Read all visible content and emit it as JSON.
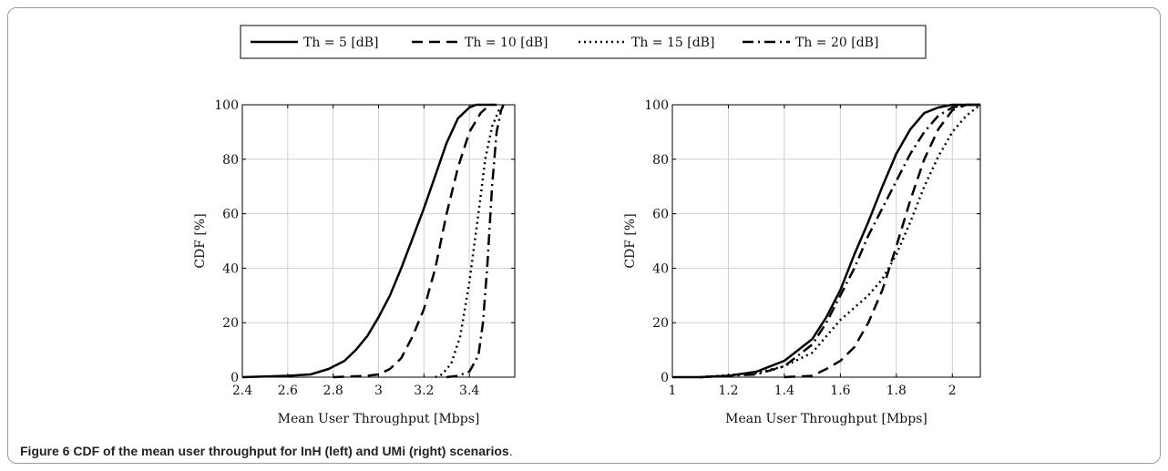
{
  "caption": {
    "label": "Figure 6",
    "text": "CDF of the mean user throughput for InH (left) and UMi (right) scenarios",
    "end": "."
  },
  "legend": {
    "entries": [
      {
        "label": "Th = 5 [dB]",
        "style": "solid"
      },
      {
        "label": "Th = 10 [dB]",
        "style": "dashed"
      },
      {
        "label": "Th = 15 [dB]",
        "style": "dotted"
      },
      {
        "label": "Th = 20 [dB]",
        "style": "dashdot"
      }
    ]
  },
  "chart_data": [
    {
      "type": "line",
      "title": "",
      "xlabel": "Mean User Throughput [Mbps]",
      "ylabel": "CDF [%]",
      "xlim": [
        2.4,
        3.6
      ],
      "ylim": [
        0,
        100
      ],
      "xticks": [
        2.4,
        2.6,
        2.8,
        3,
        3.2,
        3.4
      ],
      "xtick_labels": [
        "2.4",
        "2.6",
        "2.8",
        "3",
        "3.2",
        "3.4"
      ],
      "yticks": [
        0,
        20,
        40,
        60,
        80,
        100
      ],
      "ytick_labels": [
        "0",
        "20",
        "40",
        "60",
        "80",
        "100"
      ],
      "grid": true,
      "series": [
        {
          "name": "Th = 5 [dB]",
          "style": "solid",
          "color": "#000000",
          "points": [
            [
              2.4,
              0
            ],
            [
              2.6,
              0.5
            ],
            [
              2.7,
              1
            ],
            [
              2.78,
              3
            ],
            [
              2.85,
              6
            ],
            [
              2.9,
              10
            ],
            [
              2.95,
              15
            ],
            [
              3.0,
              22
            ],
            [
              3.05,
              30
            ],
            [
              3.1,
              40
            ],
            [
              3.15,
              51
            ],
            [
              3.2,
              62
            ],
            [
              3.25,
              74
            ],
            [
              3.3,
              86
            ],
            [
              3.35,
              95
            ],
            [
              3.4,
              99
            ],
            [
              3.43,
              100
            ],
            [
              3.5,
              100
            ]
          ]
        },
        {
          "name": "Th = 10 [dB]",
          "style": "dashed",
          "color": "#000000",
          "points": [
            [
              2.8,
              0
            ],
            [
              2.95,
              0.5
            ],
            [
              3.0,
              1
            ],
            [
              3.05,
              3
            ],
            [
              3.1,
              7
            ],
            [
              3.15,
              15
            ],
            [
              3.2,
              25
            ],
            [
              3.25,
              40
            ],
            [
              3.3,
              60
            ],
            [
              3.35,
              77
            ],
            [
              3.4,
              90
            ],
            [
              3.45,
              97
            ],
            [
              3.49,
              100
            ],
            [
              3.52,
              100
            ]
          ]
        },
        {
          "name": "Th = 15 [dB]",
          "style": "dotted",
          "color": "#000000",
          "points": [
            [
              3.25,
              0
            ],
            [
              3.28,
              1
            ],
            [
              3.32,
              5
            ],
            [
              3.36,
              15
            ],
            [
              3.4,
              35
            ],
            [
              3.44,
              60
            ],
            [
              3.47,
              80
            ],
            [
              3.5,
              92
            ],
            [
              3.53,
              98
            ],
            [
              3.56,
              100
            ]
          ]
        },
        {
          "name": "Th = 20 [dB]",
          "style": "dashdot",
          "color": "#000000",
          "points": [
            [
              3.3,
              0
            ],
            [
              3.35,
              0.5
            ],
            [
              3.4,
              2
            ],
            [
              3.44,
              8
            ],
            [
              3.46,
              20
            ],
            [
              3.48,
              42
            ],
            [
              3.5,
              70
            ],
            [
              3.52,
              90
            ],
            [
              3.54,
              98
            ],
            [
              3.55,
              100
            ]
          ]
        }
      ]
    },
    {
      "type": "line",
      "title": "",
      "xlabel": "Mean User Throughput [Mbps]",
      "ylabel": "CDF [%]",
      "xlim": [
        1,
        2.1
      ],
      "ylim": [
        0,
        100
      ],
      "xticks": [
        1,
        1.2,
        1.4,
        1.6,
        1.8,
        2
      ],
      "xtick_labels": [
        "1",
        "1.2",
        "1.4",
        "1.6",
        "1.8",
        "2"
      ],
      "yticks": [
        0,
        20,
        40,
        60,
        80,
        100
      ],
      "ytick_labels": [
        "0",
        "20",
        "40",
        "60",
        "80",
        "100"
      ],
      "grid": true,
      "series": [
        {
          "name": "Th = 5 [dB]",
          "style": "solid",
          "color": "#000000",
          "points": [
            [
              1.0,
              0
            ],
            [
              1.1,
              0
            ],
            [
              1.2,
              0.5
            ],
            [
              1.3,
              2
            ],
            [
              1.4,
              6
            ],
            [
              1.45,
              10
            ],
            [
              1.5,
              14
            ],
            [
              1.55,
              22
            ],
            [
              1.6,
              32
            ],
            [
              1.65,
              45
            ],
            [
              1.7,
              57
            ],
            [
              1.75,
              70
            ],
            [
              1.8,
              82
            ],
            [
              1.85,
              91
            ],
            [
              1.9,
              97
            ],
            [
              1.95,
              99
            ],
            [
              2.0,
              100
            ],
            [
              2.1,
              100
            ]
          ]
        },
        {
          "name": "Th = 10 [dB]",
          "style": "dashed",
          "color": "#000000",
          "points": [
            [
              1.4,
              0
            ],
            [
              1.5,
              0.5
            ],
            [
              1.55,
              3
            ],
            [
              1.6,
              6
            ],
            [
              1.65,
              11
            ],
            [
              1.7,
              20
            ],
            [
              1.75,
              32
            ],
            [
              1.8,
              48
            ],
            [
              1.85,
              65
            ],
            [
              1.9,
              80
            ],
            [
              1.95,
              91
            ],
            [
              2.0,
              98
            ],
            [
              2.05,
              100
            ],
            [
              2.1,
              100
            ]
          ]
        },
        {
          "name": "Th = 15 [dB]",
          "style": "dotted",
          "color": "#000000",
          "points": [
            [
              1.1,
              0
            ],
            [
              1.3,
              1.5
            ],
            [
              1.4,
              4
            ],
            [
              1.5,
              9
            ],
            [
              1.55,
              15
            ],
            [
              1.6,
              21
            ],
            [
              1.7,
              30
            ],
            [
              1.75,
              36
            ],
            [
              1.8,
              45
            ],
            [
              1.85,
              57
            ],
            [
              1.9,
              70
            ],
            [
              1.95,
              81
            ],
            [
              2.0,
              90
            ],
            [
              2.05,
              96
            ],
            [
              2.1,
              100
            ]
          ]
        },
        {
          "name": "Th = 20 [dB]",
          "style": "dashdot",
          "color": "#000000",
          "points": [
            [
              1.1,
              0
            ],
            [
              1.3,
              1
            ],
            [
              1.4,
              4
            ],
            [
              1.5,
              12
            ],
            [
              1.55,
              20
            ],
            [
              1.6,
              30
            ],
            [
              1.65,
              40
            ],
            [
              1.7,
              52
            ],
            [
              1.75,
              62
            ],
            [
              1.8,
              72
            ],
            [
              1.85,
              82
            ],
            [
              1.9,
              90
            ],
            [
              1.95,
              96
            ],
            [
              2.0,
              99
            ],
            [
              2.05,
              100
            ],
            [
              2.1,
              100
            ]
          ]
        }
      ]
    }
  ]
}
